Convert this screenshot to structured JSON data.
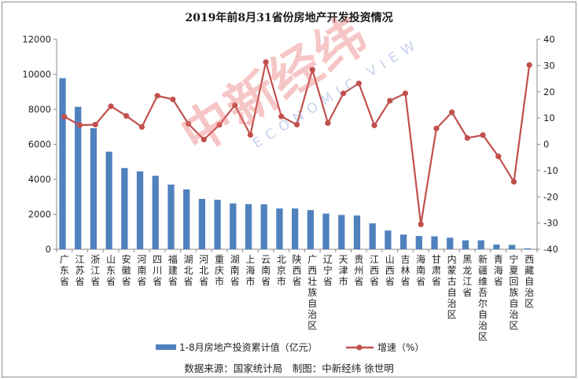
{
  "chart_data": {
    "type": "bar",
    "title": "2019年前8月31省份房地产开发投资情况",
    "categories": [
      "广东省",
      "江苏省",
      "浙江省",
      "山东省",
      "安徽省",
      "河南省",
      "四川省",
      "福建省",
      "湖北省",
      "河北省",
      "重庆市",
      "湖南省",
      "上海市",
      "云南省",
      "北京市",
      "陕西省",
      "广西壮族自治区",
      "辽宁省",
      "天津市",
      "贵州省",
      "江西省",
      "山西省",
      "吉林省",
      "海南省",
      "甘肃省",
      "内蒙古自治区",
      "黑龙江省",
      "新疆维吾尔自治区",
      "青海省",
      "宁夏回族自治区",
      "西藏自治区"
    ],
    "series": [
      {
        "name": "1-8月房地产投资累计值（亿元）",
        "axis": "left",
        "type": "bar",
        "color": "#4f81bd",
        "values": [
          9780,
          8140,
          6920,
          5580,
          4640,
          4450,
          4200,
          3700,
          3420,
          2880,
          2830,
          2620,
          2580,
          2570,
          2330,
          2330,
          2240,
          2040,
          1960,
          1930,
          1480,
          1070,
          840,
          760,
          740,
          660,
          510,
          510,
          270,
          250,
          55
        ]
      },
      {
        "name": "增速（%）",
        "axis": "right",
        "type": "line",
        "color": "#c0504d",
        "values": [
          10.5,
          7.3,
          7.5,
          14.5,
          10.8,
          6.6,
          18.5,
          17.1,
          7.8,
          1.8,
          7.4,
          14.9,
          3.6,
          31.3,
          10.6,
          7.5,
          28.4,
          8.1,
          19.4,
          23.2,
          7.2,
          16.6,
          19.4,
          -30.5,
          6.0,
          12.2,
          2.4,
          3.5,
          -4.6,
          -14.3,
          30.2
        ]
      }
    ],
    "y_left": {
      "min": 0,
      "max": 12000,
      "ticks": [
        0,
        2000,
        4000,
        6000,
        8000,
        10000,
        12000
      ]
    },
    "y_right": {
      "min": -40,
      "max": 40,
      "ticks": [
        -40,
        -30,
        -20,
        -10,
        0,
        10,
        20,
        30,
        40
      ]
    },
    "grid": false,
    "legend_position": "bottom"
  },
  "legend": {
    "bar_label": "1-8月房地产投资累计值（亿元）",
    "line_label": "增速（%）"
  },
  "footer": {
    "source": "数据来源：国家统计局　制图：中新经纬 徐世明"
  },
  "watermark": {
    "main": "中新经纬",
    "sub": "ECONOMIC VIEW"
  }
}
